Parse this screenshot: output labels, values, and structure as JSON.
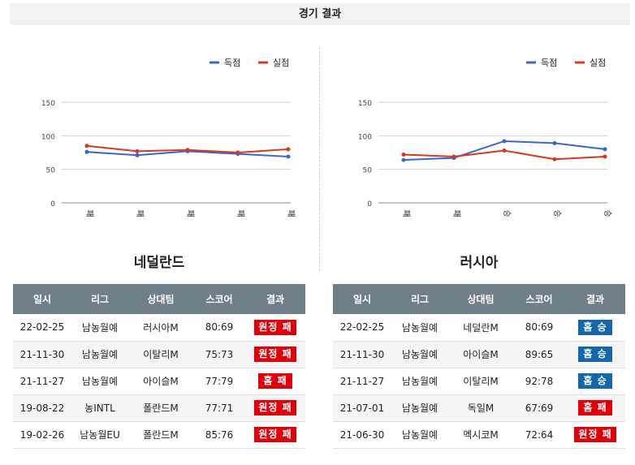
{
  "header": {
    "title": "경기 결과"
  },
  "colors": {
    "scored": "#3d66c8",
    "conceded": "#d7381e",
    "win_badge": "#1466ad",
    "loss_badge": "#e0000b",
    "table_header": "#6e7f8a"
  },
  "chart_data": [
    {
      "type": "line",
      "categories": [
        "패",
        "패",
        "패",
        "패",
        "패"
      ],
      "series": [
        {
          "name": "득점",
          "values": [
            76,
            71,
            77,
            73,
            69
          ]
        },
        {
          "name": "실점",
          "values": [
            85,
            77,
            79,
            75,
            80
          ]
        }
      ],
      "ylim": [
        0,
        150
      ],
      "yticks": [
        0,
        50,
        100,
        150
      ],
      "grid": true,
      "legend": "top-right"
    },
    {
      "type": "line",
      "categories": [
        "패",
        "패",
        "승",
        "승",
        "승"
      ],
      "series": [
        {
          "name": "득점",
          "values": [
            64,
            67,
            92,
            89,
            80
          ]
        },
        {
          "name": "실점",
          "values": [
            72,
            69,
            78,
            65,
            69
          ]
        }
      ],
      "ylim": [
        0,
        150
      ],
      "yticks": [
        0,
        50,
        100,
        150
      ],
      "grid": true,
      "legend": "top-right"
    }
  ],
  "teams": [
    {
      "name": "네덜란드",
      "headers": [
        "일시",
        "리그",
        "상대팀",
        "스코어",
        "결과"
      ],
      "rows": [
        {
          "date": "22-02-25",
          "league": "남농월예",
          "opponent": "러시아M",
          "score": "80:69",
          "result": "원정 패",
          "outcome": "loss"
        },
        {
          "date": "21-11-30",
          "league": "남농월예",
          "opponent": "이탈리M",
          "score": "75:73",
          "result": "원정 패",
          "outcome": "loss"
        },
        {
          "date": "21-11-27",
          "league": "남농월예",
          "opponent": "아이슬M",
          "score": "77:79",
          "result": "홈 패",
          "outcome": "loss"
        },
        {
          "date": "19-08-22",
          "league": "농INTL",
          "opponent": "폴란드M",
          "score": "77:71",
          "result": "원정 패",
          "outcome": "loss"
        },
        {
          "date": "19-02-26",
          "league": "남농월EU",
          "opponent": "폴란드M",
          "score": "85:76",
          "result": "원정 패",
          "outcome": "loss"
        }
      ]
    },
    {
      "name": "러시아",
      "headers": [
        "일시",
        "리그",
        "상대팀",
        "스코어",
        "결과"
      ],
      "rows": [
        {
          "date": "22-02-25",
          "league": "남농월예",
          "opponent": "네덜란M",
          "score": "80:69",
          "result": "홈 승",
          "outcome": "win"
        },
        {
          "date": "21-11-30",
          "league": "남농월예",
          "opponent": "아이슬M",
          "score": "89:65",
          "result": "홈 승",
          "outcome": "win"
        },
        {
          "date": "21-11-27",
          "league": "남농월예",
          "opponent": "이탈리M",
          "score": "92:78",
          "result": "홈 승",
          "outcome": "win"
        },
        {
          "date": "21-07-01",
          "league": "남농월예",
          "opponent": "독일M",
          "score": "67:69",
          "result": "홈 패",
          "outcome": "loss"
        },
        {
          "date": "21-06-30",
          "league": "남농월예",
          "opponent": "멕시코M",
          "score": "72:64",
          "result": "원정 패",
          "outcome": "loss"
        }
      ]
    }
  ]
}
